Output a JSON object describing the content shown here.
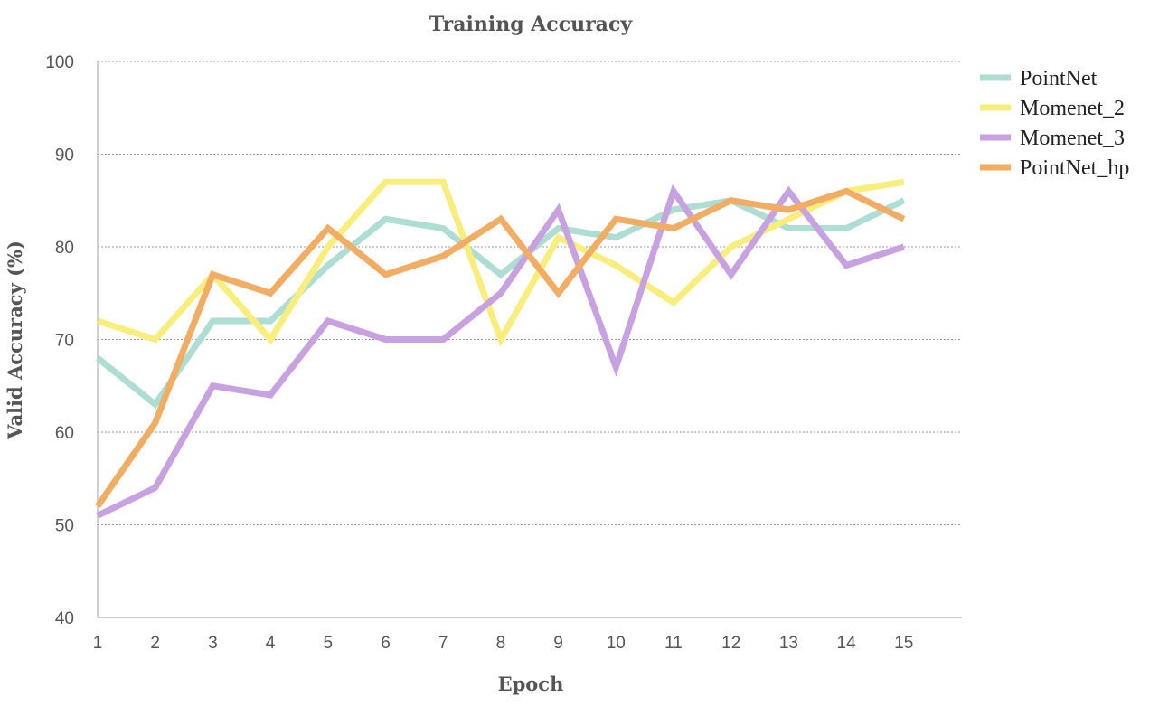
{
  "chart_data": {
    "type": "line",
    "title": "Training Accuracy",
    "xlabel": "Epoch",
    "ylabel": "Valid Accuracy (%)",
    "x": [
      1,
      2,
      3,
      4,
      5,
      6,
      7,
      8,
      9,
      10,
      11,
      12,
      13,
      14,
      15
    ],
    "ylim": [
      40,
      100
    ],
    "yticks": [
      40,
      50,
      60,
      70,
      80,
      90,
      100
    ],
    "grid": true,
    "legend_position": "right",
    "series": [
      {
        "name": "PointNet",
        "color": "#AEDDD3",
        "values": [
          68,
          63,
          72,
          72,
          78,
          83,
          82,
          77,
          82,
          81,
          84,
          85,
          82,
          82,
          85
        ]
      },
      {
        "name": "Momenet_2",
        "color": "#F8EE7E",
        "values": [
          72,
          70,
          77,
          70,
          80,
          87,
          87,
          70,
          81,
          78,
          74,
          80,
          83,
          86,
          87
        ]
      },
      {
        "name": "Momenet_3",
        "color": "#C8A1E0",
        "values": [
          51,
          54,
          65,
          64,
          72,
          70,
          70,
          75,
          84,
          67,
          86,
          77,
          86,
          78,
          80
        ]
      },
      {
        "name": "PointNet_hp",
        "color": "#F0AD63",
        "values": [
          52,
          61,
          77,
          75,
          82,
          77,
          79,
          83,
          75,
          83,
          82,
          85,
          84,
          86,
          83
        ]
      }
    ]
  }
}
